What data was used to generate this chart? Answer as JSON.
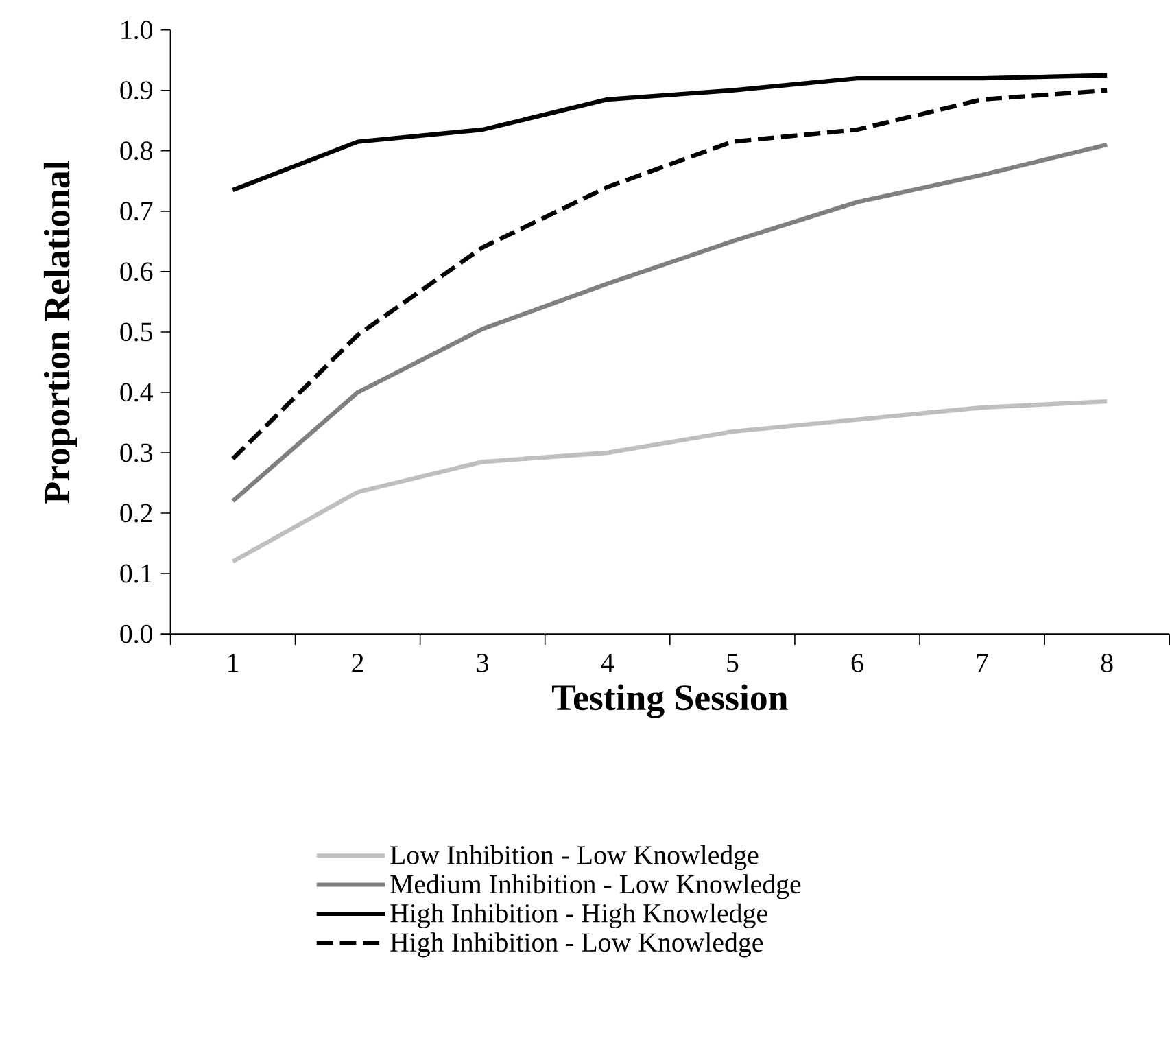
{
  "chart_data": {
    "type": "line",
    "xlabel": "Testing Session",
    "ylabel": "Proportion Relational",
    "categories": [
      "1",
      "2",
      "3",
      "4",
      "5",
      "6",
      "7",
      "8"
    ],
    "series": [
      {
        "name": "Low Inhibition - Low Knowledge",
        "color": "#bfbfbf",
        "line_style": "solid",
        "values": [
          0.12,
          0.235,
          0.285,
          0.3,
          0.335,
          0.355,
          0.375,
          0.385
        ]
      },
      {
        "name": "Medium Inhibition - Low Knowledge",
        "color": "#808080",
        "line_style": "solid",
        "values": [
          0.22,
          0.4,
          0.505,
          0.58,
          0.65,
          0.715,
          0.76,
          0.81
        ]
      },
      {
        "name": "High Inhibition - High Knowledge",
        "color": "#000000",
        "line_style": "solid",
        "values": [
          0.735,
          0.815,
          0.835,
          0.885,
          0.9,
          0.92,
          0.92,
          0.925
        ]
      },
      {
        "name": "High Inhibition - Low Knowledge",
        "color": "#000000",
        "line_style": "dashed",
        "values": [
          0.29,
          0.495,
          0.64,
          0.74,
          0.815,
          0.835,
          0.885,
          0.9
        ]
      }
    ],
    "ylim": [
      0,
      1
    ],
    "yticks": [
      {
        "value": 0,
        "label": "0.0"
      },
      0.1,
      0.2,
      0.3,
      0.4,
      0.5,
      0.6,
      0.7,
      0.8,
      0.9,
      {
        "value": 1,
        "label": "1.0"
      }
    ],
    "grid": false,
    "legend": "bottom",
    "marker": "none"
  }
}
